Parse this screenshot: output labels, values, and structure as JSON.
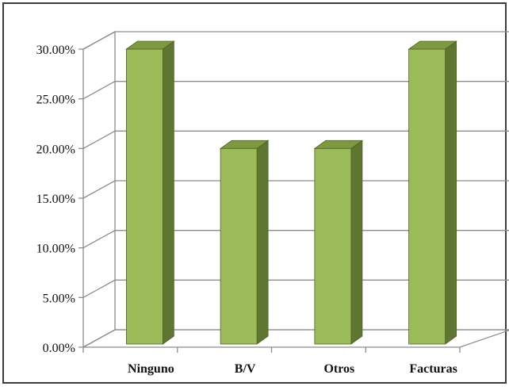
{
  "chart_data": {
    "type": "bar",
    "categories": [
      "Ninguno",
      "B/V",
      "Otros",
      "Facturas"
    ],
    "values": [
      0.3,
      0.2,
      0.2,
      0.3
    ],
    "y_tick_labels": [
      "0.00%",
      "5.00%",
      "10.00%",
      "15.00%",
      "20.00%",
      "25.00%",
      "30.00%"
    ],
    "ylim": [
      0,
      0.3
    ],
    "grid": true,
    "legend": "none",
    "style": "3d-column",
    "colors": {
      "bar_front": "#9BBB59",
      "bar_side": "#5E7630",
      "bar_top": "#7F9A3E",
      "bar_stroke": "#4F6228",
      "grid": "#8C8C8C",
      "border": "#3C3C3C"
    }
  }
}
